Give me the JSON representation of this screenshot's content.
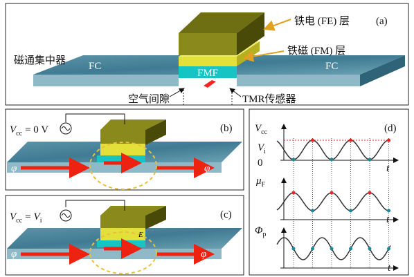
{
  "panel_a": {
    "label": "(a)",
    "fe_layer": "铁电 (FE) 层",
    "fm_layer": "铁磁 (FM) 层",
    "flux_concentrator": "磁通集中器",
    "fc_left": "FC",
    "fc_right": "FC",
    "fmf": "FMF",
    "air_gap": "空气间隙",
    "tmr_sensor": "TMR传感器"
  },
  "panel_b": {
    "label": "(b)",
    "voltage": {
      "symbol": "V",
      "subscript": "cc",
      "value": "= 0 V"
    },
    "flux_left": "φ",
    "flux_right": "φ"
  },
  "panel_c": {
    "label": "(c)",
    "voltage": {
      "symbol": "V",
      "subscript": "cc",
      "equals": "=",
      "value_symbol": "V",
      "value_subscript": "i"
    },
    "field": "E",
    "flux_left": "φ",
    "flux_right": "φ"
  },
  "panel_d": {
    "label": "(d)",
    "plot_1": {
      "y_label": {
        "symbol": "V",
        "subscript": "cc"
      },
      "level_high": {
        "symbol": "V",
        "subscript": "i"
      },
      "level_zero": "0",
      "x_label": "t"
    },
    "plot_2": {
      "y_label": {
        "symbol": "μ",
        "subscript": "F"
      },
      "x_label": "t"
    },
    "plot_3": {
      "y_label": {
        "symbol": "Φ",
        "subscript": "p"
      },
      "x_label": "t"
    }
  }
}
